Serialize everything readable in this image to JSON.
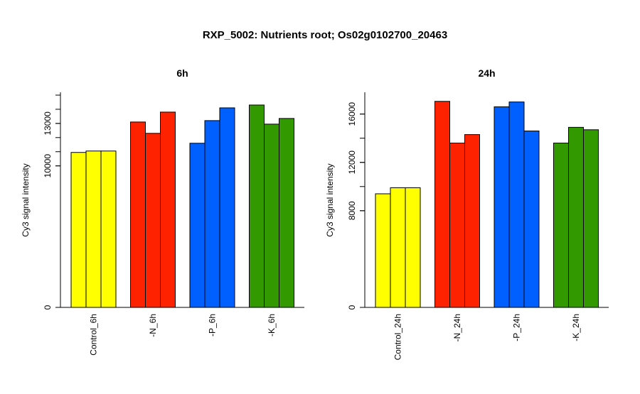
{
  "title": "RXP_5002: Nutrients root; Os02g0102700_20463",
  "colors": {
    "yellow": "#ffff00",
    "red": "#ff2200",
    "blue": "#0060ff",
    "green": "#339900"
  },
  "chart_data": [
    {
      "type": "bar",
      "title": "6h",
      "ylabel": "Cy3 signal intensity",
      "ylim": [
        0,
        15200
      ],
      "yticks": [
        0,
        10000,
        13000
      ],
      "groups": [
        "Control_6h",
        "-N_6h",
        "-P_6h",
        "-K_6h"
      ],
      "group_colors": [
        "#ffff00",
        "#ff2200",
        "#0060ff",
        "#339900"
      ],
      "values": [
        [
          10950,
          11050,
          11050
        ],
        [
          13100,
          12300,
          13800
        ],
        [
          11600,
          13200,
          14100
        ],
        [
          14300,
          12950,
          13350
        ]
      ]
    },
    {
      "type": "bar",
      "title": "24h",
      "ylabel": "Cy3 signal intensity",
      "ylim": [
        0,
        17800
      ],
      "yticks": [
        0,
        8000,
        12000,
        16000
      ],
      "groups": [
        "Control_24h",
        "-N_24h",
        "-P_24h",
        "-K_24h"
      ],
      "group_colors": [
        "#ffff00",
        "#ff2200",
        "#0060ff",
        "#339900"
      ],
      "values": [
        [
          9400,
          9900,
          9900
        ],
        [
          17050,
          13600,
          14300
        ],
        [
          16600,
          17000,
          14600
        ],
        [
          13600,
          14900,
          14700
        ]
      ]
    }
  ]
}
